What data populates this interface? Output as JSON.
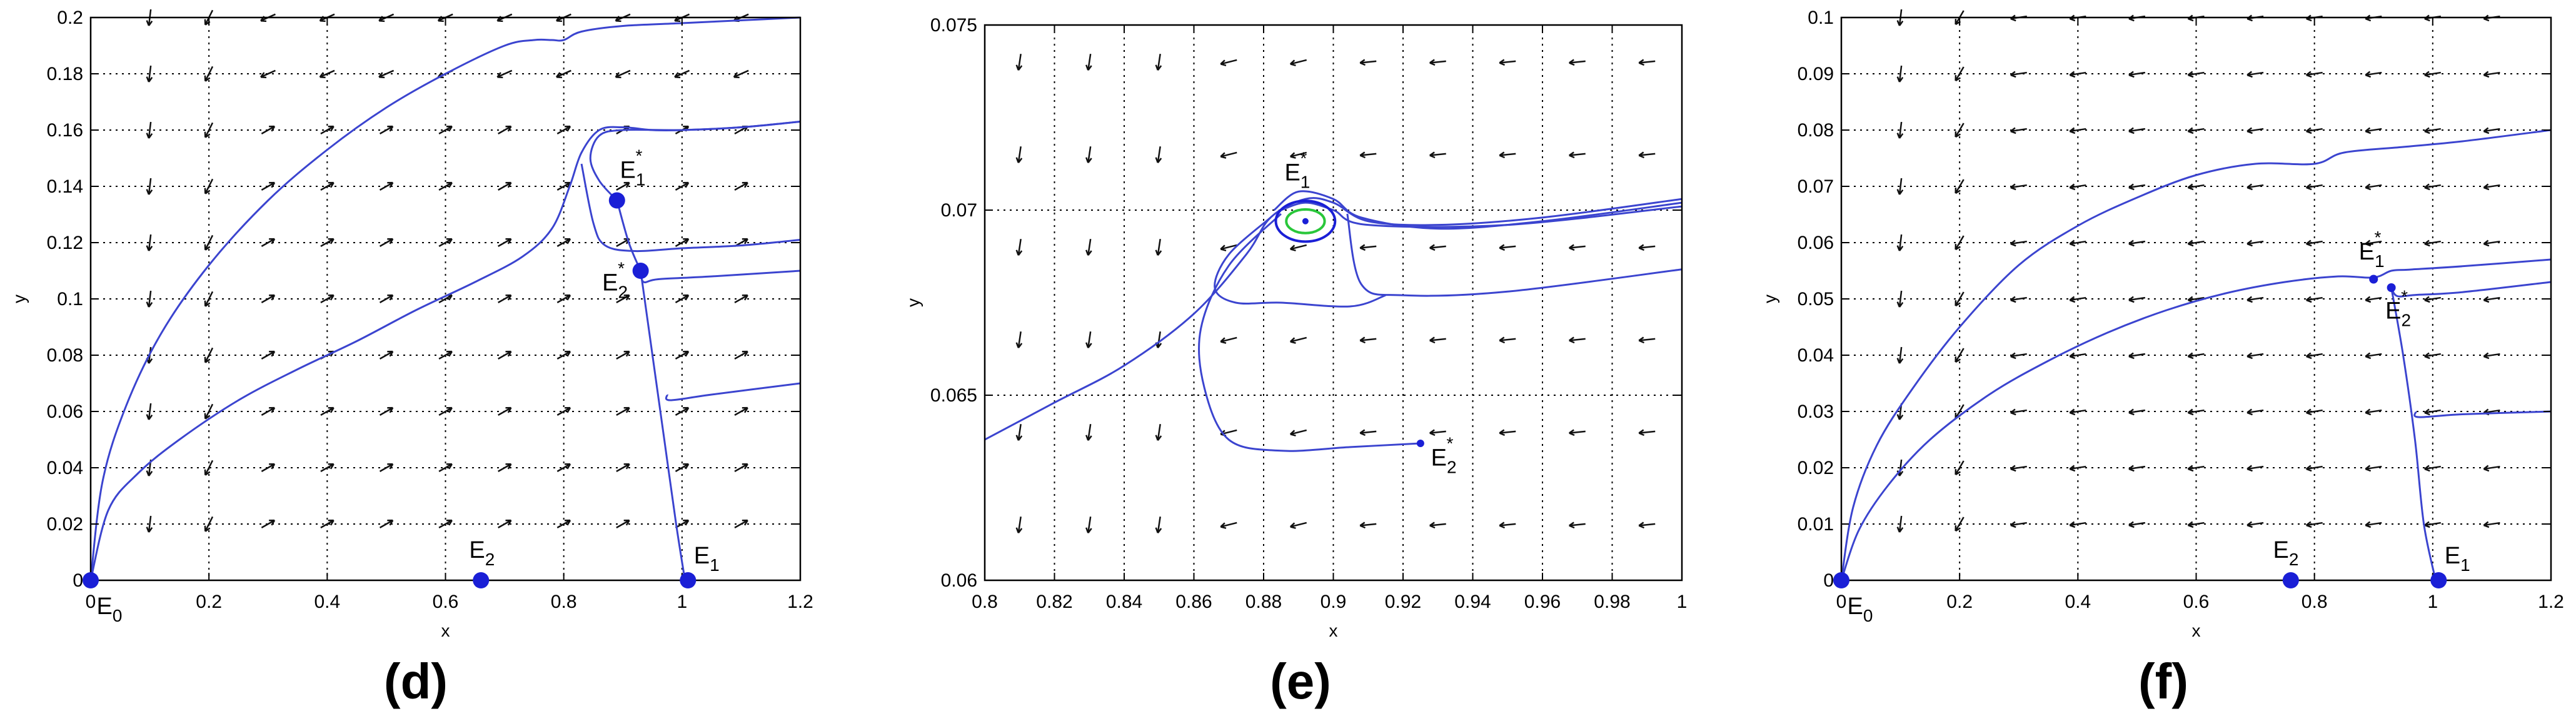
{
  "colors": {
    "trajectory": "#3b44cf",
    "point": "#1a1fd6",
    "vector": "#111111",
    "grid": "#000000",
    "cycle_green": "#29c73a"
  },
  "chart_data": [
    {
      "type": "phase-portrait",
      "panel_label": "(d)",
      "xlabel": "x",
      "ylabel": "y",
      "xlim": [
        0,
        1.2
      ],
      "ylim": [
        0,
        0.2
      ],
      "xticks": [
        "0",
        "0.2",
        "0.4",
        "0.6",
        "0.8",
        "1",
        "1.2"
      ],
      "yticks": [
        "0",
        "0.02",
        "0.04",
        "0.06",
        "0.08",
        "0.1",
        "0.12",
        "0.14",
        "0.16",
        "0.18",
        "0.2"
      ],
      "grid": true,
      "field": {
        "kind": "d",
        "xs": [
          0.1,
          0.2,
          0.3,
          0.4,
          0.5,
          0.6,
          0.7,
          0.8,
          0.9,
          1.0,
          1.1
        ],
        "ys": [
          0.02,
          0.04,
          0.06,
          0.08,
          0.1,
          0.12,
          0.14,
          0.16,
          0.18,
          0.2
        ]
      },
      "equilibria": [
        {
          "sym": "E",
          "sub": "0",
          "star": false,
          "x": 0,
          "y": 0,
          "lx": 0.01,
          "ly": -0.012
        },
        {
          "sym": "E",
          "sub": "2",
          "star": false,
          "x": 0.66,
          "y": 0,
          "lx": 0.64,
          "ly": 0.008
        },
        {
          "sym": "E",
          "sub": "1",
          "star": false,
          "x": 1.01,
          "y": 0,
          "lx": 1.02,
          "ly": 0.006
        },
        {
          "sym": "E",
          "sub": "1",
          "star": true,
          "x": 0.89,
          "y": 0.135,
          "lx": 0.895,
          "ly": 0.143
        },
        {
          "sym": "E",
          "sub": "2",
          "star": true,
          "x": 0.93,
          "y": 0.11,
          "lx": 0.865,
          "ly": 0.103
        }
      ],
      "trajectories": [
        {
          "points": [
            [
              0,
              0
            ],
            [
              0.02,
              0.035
            ],
            [
              0.06,
              0.062
            ],
            [
              0.12,
              0.088
            ],
            [
              0.2,
              0.112
            ],
            [
              0.3,
              0.135
            ],
            [
              0.4,
              0.153
            ],
            [
              0.5,
              0.168
            ],
            [
              0.6,
              0.18
            ],
            [
              0.7,
              0.19
            ],
            [
              0.75,
              0.192
            ],
            [
              0.78,
              0.192
            ],
            [
              0.8,
              0.192
            ],
            [
              0.83,
              0.195
            ],
            [
              0.9,
              0.197
            ],
            [
              1.0,
              0.198
            ],
            [
              1.1,
              0.199
            ],
            [
              1.2,
              0.2
            ]
          ]
        },
        {
          "points": [
            [
              0,
              0
            ],
            [
              0.03,
              0.025
            ],
            [
              0.08,
              0.038
            ],
            [
              0.15,
              0.05
            ],
            [
              0.25,
              0.064
            ],
            [
              0.35,
              0.075
            ],
            [
              0.45,
              0.085
            ],
            [
              0.55,
              0.096
            ],
            [
              0.65,
              0.106
            ],
            [
              0.73,
              0.115
            ],
            [
              0.78,
              0.125
            ],
            [
              0.81,
              0.14
            ],
            [
              0.83,
              0.152
            ],
            [
              0.86,
              0.16
            ],
            [
              0.9,
              0.161
            ],
            [
              0.95,
              0.16
            ],
            [
              1.0,
              0.16
            ],
            [
              1.1,
              0.161
            ],
            [
              1.2,
              0.163
            ]
          ]
        },
        {
          "points": [
            [
              0.89,
              0.135
            ],
            [
              0.86,
              0.142
            ],
            [
              0.845,
              0.15
            ],
            [
              0.86,
              0.158
            ],
            [
              0.9,
              0.16
            ],
            [
              1.0,
              0.16
            ],
            [
              1.1,
              0.161
            ],
            [
              1.2,
              0.163
            ]
          ]
        },
        {
          "points": [
            [
              0.83,
              0.148
            ],
            [
              0.85,
              0.127
            ],
            [
              0.87,
              0.119
            ],
            [
              0.92,
              0.117
            ],
            [
              1.0,
              0.118
            ],
            [
              1.1,
              0.119
            ],
            [
              1.2,
              0.121
            ]
          ]
        },
        {
          "points": [
            [
              0.89,
              0.135
            ],
            [
              0.91,
              0.12
            ],
            [
              0.93,
              0.11
            ]
          ]
        },
        {
          "points": [
            [
              0.93,
              0.11
            ],
            [
              0.935,
              0.106
            ],
            [
              0.96,
              0.107
            ],
            [
              1.05,
              0.108
            ],
            [
              1.2,
              0.11
            ]
          ]
        },
        {
          "points": [
            [
              0.93,
              0.11
            ],
            [
              0.95,
              0.08
            ],
            [
              0.97,
              0.05
            ],
            [
              0.99,
              0.02
            ],
            [
              1.005,
              0
            ]
          ]
        },
        {
          "points": [
            [
              0.975,
              0.066
            ],
            [
              0.98,
              0.064
            ],
            [
              1.05,
              0.066
            ],
            [
              1.2,
              0.07
            ]
          ]
        }
      ]
    },
    {
      "type": "phase-portrait",
      "panel_label": "(e)",
      "xlabel": "x",
      "ylabel": "y",
      "xlim": [
        0.8,
        1.0
      ],
      "ylim": [
        0.06,
        0.075
      ],
      "xticks": [
        "0.8",
        "0.82",
        "0.84",
        "0.86",
        "0.88",
        "0.9",
        "0.92",
        "0.94",
        "0.96",
        "0.98",
        "1"
      ],
      "yticks": [
        "0.06",
        "0.065",
        "0.07",
        "0.075"
      ],
      "grid": true,
      "field": {
        "kind": "e",
        "xs": [
          0.81,
          0.83,
          0.85,
          0.87,
          0.89,
          0.91,
          0.93,
          0.95,
          0.97,
          0.99
        ],
        "ys": [
          0.0615,
          0.064,
          0.0665,
          0.069,
          0.0715,
          0.074
        ]
      },
      "equilibria": [
        {
          "sym": "E",
          "sub": "1",
          "star": true,
          "x": 0.892,
          "y": 0.0697,
          "r": 5,
          "lx": 0.886,
          "ly": 0.0708
        },
        {
          "sym": "E",
          "sub": "2",
          "star": true,
          "x": 0.925,
          "y": 0.0637,
          "r": 6,
          "lx": 0.928,
          "ly": 0.0631
        }
      ],
      "cycles": [
        {
          "cx": 0.892,
          "cy": 0.0697,
          "rx": 0.0085,
          "ry": 0.00055,
          "color": "#1a1fd6"
        },
        {
          "cx": 0.892,
          "cy": 0.0697,
          "rx": 0.0055,
          "ry": 0.00032,
          "color": "#29c73a"
        }
      ],
      "trajectories": [
        {
          "points": [
            [
              0.8,
              0.0638
            ],
            [
              0.82,
              0.0648
            ],
            [
              0.84,
              0.0658
            ],
            [
              0.86,
              0.0672
            ],
            [
              0.875,
              0.0688
            ],
            [
              0.882,
              0.0698
            ],
            [
              0.892,
              0.0703
            ],
            [
              0.9,
              0.0702
            ],
            [
              0.91,
              0.0697
            ],
            [
              0.93,
              0.0696
            ],
            [
              0.96,
              0.0698
            ],
            [
              1.0,
              0.0703
            ]
          ]
        },
        {
          "points": [
            [
              0.883,
              0.07
            ],
            [
              0.89,
              0.0705
            ],
            [
              0.9,
              0.0703
            ],
            [
              0.908,
              0.0698
            ],
            [
              0.93,
              0.0695
            ],
            [
              0.96,
              0.0697
            ],
            [
              1.0,
              0.0702
            ]
          ]
        },
        {
          "points": [
            [
              0.885,
              0.07
            ],
            [
              0.892,
              0.0702
            ],
            [
              0.9,
              0.07
            ],
            [
              0.91,
              0.0696
            ],
            [
              0.95,
              0.0696
            ],
            [
              1.0,
              0.0701
            ]
          ]
        },
        {
          "points": [
            [
              0.882,
              0.0698
            ],
            [
              0.87,
              0.0688
            ],
            [
              0.866,
              0.0679
            ],
            [
              0.872,
              0.0675
            ],
            [
              0.885,
              0.0675
            ],
            [
              0.905,
              0.0674
            ],
            [
              0.915,
              0.0677
            ]
          ]
        },
        {
          "points": [
            [
              0.885,
              0.0699
            ],
            [
              0.87,
              0.0685
            ],
            [
              0.862,
              0.0668
            ],
            [
              0.863,
              0.0652
            ],
            [
              0.87,
              0.0638
            ],
            [
              0.885,
              0.0635
            ],
            [
              0.905,
              0.0636
            ],
            [
              0.925,
              0.0637
            ]
          ]
        },
        {
          "points": [
            [
              0.904,
              0.0699
            ],
            [
              0.908,
              0.068
            ],
            [
              0.92,
              0.0677
            ],
            [
              0.95,
              0.0678
            ],
            [
              1.0,
              0.0684
            ]
          ]
        }
      ]
    },
    {
      "type": "phase-portrait",
      "panel_label": "(f)",
      "xlabel": "x",
      "ylabel": "y",
      "xlim": [
        0,
        1.2
      ],
      "ylim": [
        0,
        0.1
      ],
      "xticks": [
        "0",
        "0.2",
        "0.4",
        "0.6",
        "0.8",
        "1",
        "1.2"
      ],
      "yticks": [
        "0",
        "0.01",
        "0.02",
        "0.03",
        "0.04",
        "0.05",
        "0.06",
        "0.07",
        "0.08",
        "0.09",
        "0.1"
      ],
      "grid": true,
      "field": {
        "kind": "f",
        "xs": [
          0.1,
          0.2,
          0.3,
          0.4,
          0.5,
          0.6,
          0.7,
          0.8,
          0.9,
          1.0,
          1.1
        ],
        "ys": [
          0.01,
          0.02,
          0.03,
          0.04,
          0.05,
          0.06,
          0.07,
          0.08,
          0.09,
          0.1
        ]
      },
      "equilibria": [
        {
          "sym": "E",
          "sub": "0",
          "star": false,
          "x": 0,
          "y": 0,
          "lx": 0.01,
          "ly": -0.006
        },
        {
          "sym": "E",
          "sub": "2",
          "star": false,
          "x": 0.76,
          "y": 0,
          "lx": 0.73,
          "ly": 0.004
        },
        {
          "sym": "E",
          "sub": "1",
          "star": false,
          "x": 1.01,
          "y": 0,
          "lx": 1.02,
          "ly": 0.003
        },
        {
          "sym": "E",
          "sub": "1",
          "star": true,
          "x": 0.9,
          "y": 0.0535,
          "r": 7,
          "lx": 0.875,
          "ly": 0.057
        },
        {
          "sym": "E",
          "sub": "2",
          "star": true,
          "x": 0.93,
          "y": 0.052,
          "r": 7,
          "lx": 0.92,
          "ly": 0.0465
        }
      ],
      "trajectories": [
        {
          "points": [
            [
              0,
              0
            ],
            [
              0.02,
              0.013
            ],
            [
              0.06,
              0.024
            ],
            [
              0.12,
              0.034
            ],
            [
              0.2,
              0.045
            ],
            [
              0.3,
              0.056
            ],
            [
              0.4,
              0.063
            ],
            [
              0.5,
              0.068
            ],
            [
              0.6,
              0.072
            ],
            [
              0.7,
              0.074
            ],
            [
              0.8,
              0.074
            ],
            [
              0.85,
              0.076
            ],
            [
              0.95,
              0.077
            ],
            [
              1.05,
              0.078
            ],
            [
              1.2,
              0.08
            ]
          ]
        },
        {
          "points": [
            [
              0,
              0
            ],
            [
              0.03,
              0.009
            ],
            [
              0.08,
              0.017
            ],
            [
              0.15,
              0.025
            ],
            [
              0.25,
              0.033
            ],
            [
              0.35,
              0.039
            ],
            [
              0.45,
              0.044
            ],
            [
              0.55,
              0.048
            ],
            [
              0.65,
              0.051
            ],
            [
              0.75,
              0.053
            ],
            [
              0.84,
              0.054
            ],
            [
              0.9,
              0.0538
            ],
            [
              0.93,
              0.055
            ],
            [
              0.96,
              0.0552
            ],
            [
              1.05,
              0.0558
            ],
            [
              1.2,
              0.057
            ]
          ]
        },
        {
          "points": [
            [
              0.93,
              0.052
            ],
            [
              0.94,
              0.0505
            ],
            [
              0.97,
              0.0507
            ],
            [
              1.05,
              0.0512
            ],
            [
              1.2,
              0.053
            ]
          ]
        },
        {
          "points": [
            [
              0.93,
              0.052
            ],
            [
              0.95,
              0.04
            ],
            [
              0.97,
              0.025
            ],
            [
              0.985,
              0.01
            ],
            [
              1.005,
              0
            ]
          ]
        },
        {
          "points": [
            [
              0.972,
              0.03
            ],
            [
              0.976,
              0.029
            ],
            [
              1.05,
              0.0295
            ],
            [
              1.2,
              0.03
            ]
          ]
        }
      ]
    }
  ]
}
